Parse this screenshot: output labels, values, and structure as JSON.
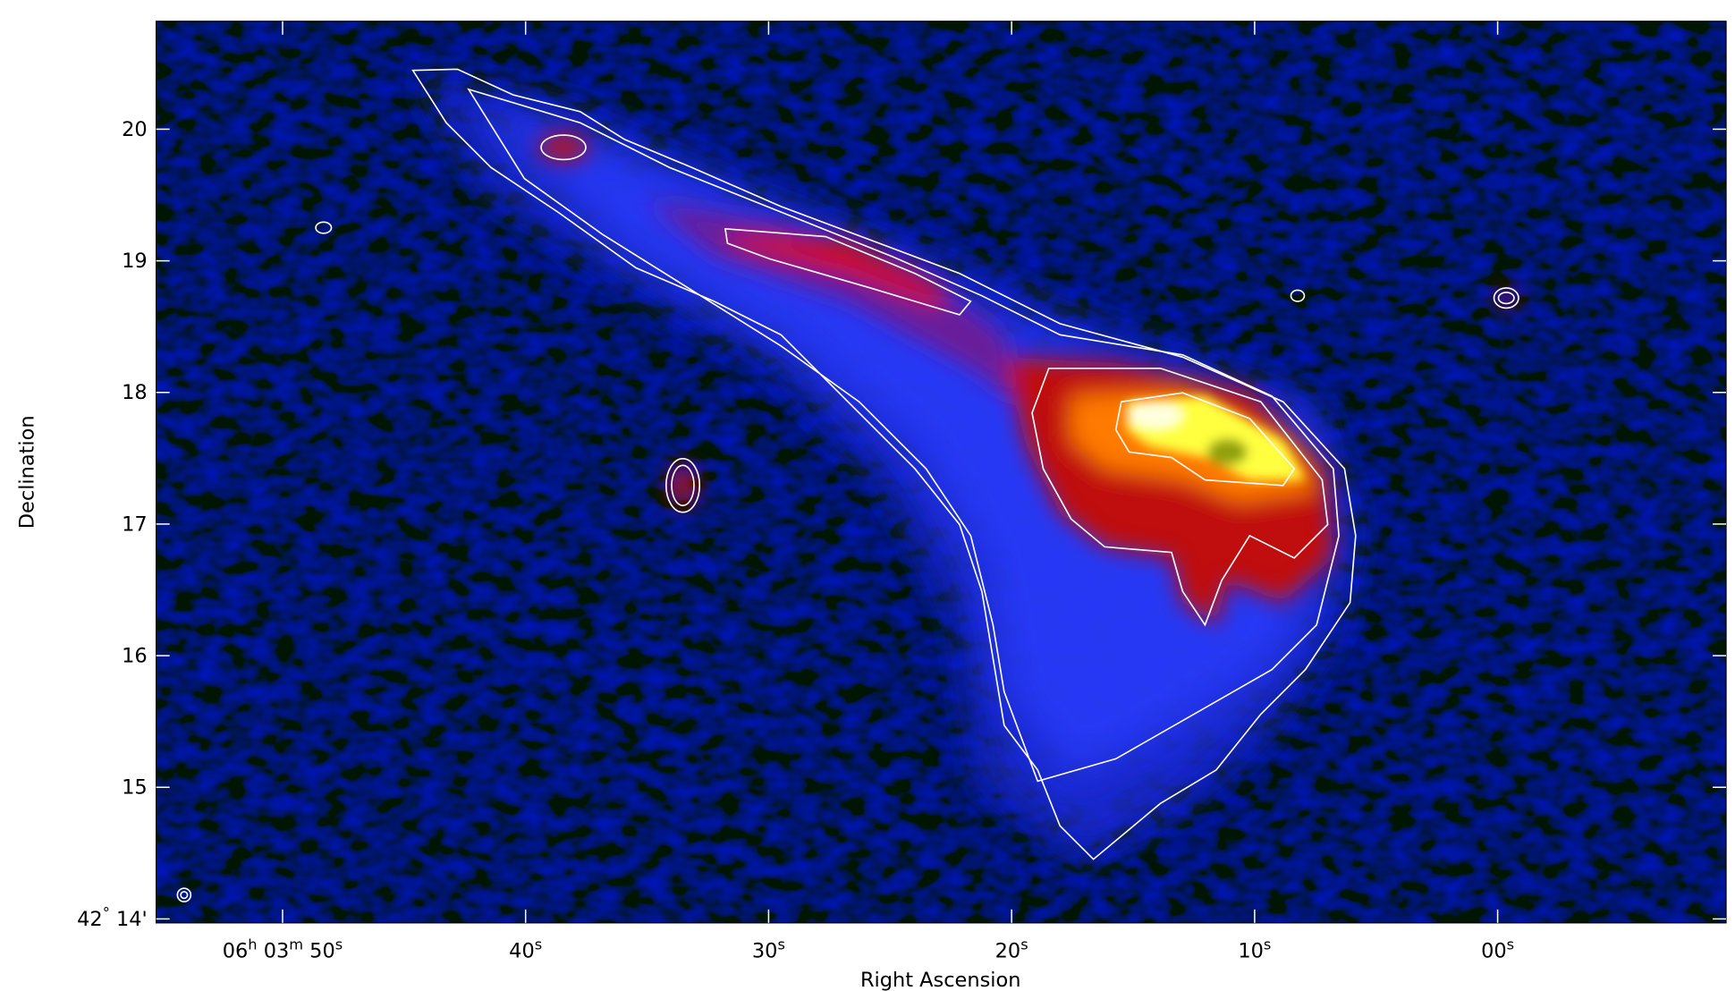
{
  "chart_data": {
    "type": "image",
    "xlabel": "Right Ascension",
    "ylabel": "Declination",
    "xlim": [
      55.2,
      -9.4
    ],
    "ylim": [
      13.97,
      20.82
    ],
    "xticks": [
      {
        "value": 50,
        "label": "06h 03m 50s"
      },
      {
        "value": 40,
        "label": "40s"
      },
      {
        "value": 30,
        "label": "30s"
      },
      {
        "value": 20,
        "label": "20s"
      },
      {
        "value": 10,
        "label": "10s"
      },
      {
        "value": 0,
        "label": "00s"
      }
    ],
    "yticks": [
      {
        "value": 14,
        "label": "42° 14'"
      },
      15,
      16,
      17,
      18,
      19,
      20
    ]
  }
}
